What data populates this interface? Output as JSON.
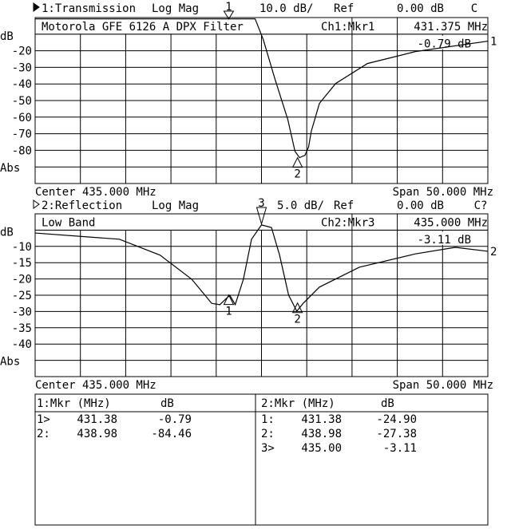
{
  "chart_data": [
    {
      "type": "line",
      "channel_label": "1:Transmission",
      "format": "Log Mag",
      "scale": "10.0 dB/",
      "ref_label": "Ref",
      "ref": "0.00 dB",
      "flag": "C",
      "title": "Motorola GFE 6126 A DPX Filter",
      "marker_readout_label": "Ch1:Mkr1",
      "marker_readout_freq": "431.375 MHz",
      "marker_readout_value": "-0.79 dB",
      "ylabel": "dB",
      "ybottom_label": "Abs",
      "yticks": [
        "-20",
        "-30",
        "-40",
        "-50",
        "-60",
        "-70",
        "-80"
      ],
      "dB_per_div": 10,
      "ref_db": 0,
      "center_label": "Center 435.000 MHz",
      "span_label": "Span 50.000 MHz",
      "xlim": [
        410,
        460
      ],
      "trace_label": "1",
      "series": [
        {
          "x": [
            410,
            434.3,
            435.2,
            436.5,
            437.9,
            438.7,
            439.2,
            439.8,
            440.2,
            440.5,
            441.4,
            443.2,
            446.7,
            452,
            460
          ],
          "y": [
            -0.8,
            -0.8,
            -13.3,
            -37.3,
            -61.3,
            -80.6,
            -84.4,
            -83,
            -78,
            -68.5,
            -51.7,
            -39.7,
            -27.7,
            -20.5,
            -14.2
          ]
        }
      ],
      "markers": [
        {
          "id": "1",
          "freq": 431.38,
          "db": -0.79,
          "pos": "top"
        },
        {
          "id": "2",
          "freq": 438.98,
          "db": -84.46,
          "pos": "trace"
        }
      ]
    },
    {
      "type": "line",
      "channel_label": "2:Reflection",
      "format": "Log Mag",
      "scale": "5.0 dB/",
      "ref_label": "Ref",
      "ref": "0.00 dB",
      "flag": "C?",
      "title": "Low Band",
      "marker_readout_label": "Ch2:Mkr3",
      "marker_readout_freq": "435.000 MHz",
      "marker_readout_value": "-3.11 dB",
      "ylabel": "dB",
      "ybottom_label": "Abs",
      "yticks": [
        "-10",
        "-15",
        "-20",
        "-25",
        "-30",
        "-35",
        "-40"
      ],
      "dB_per_div": 5,
      "ref_db": 0,
      "center_label": "Center 435.000 MHz",
      "span_label": "Span 50.000 MHz",
      "xlim": [
        410,
        460
      ],
      "trace_label": "2",
      "series": [
        {
          "x": [
            410,
            419.3,
            423.8,
            427.3,
            429.5,
            430.4,
            431.5,
            432.1,
            433,
            433.9,
            435,
            436.1,
            437,
            438,
            438.9,
            439.6,
            441.4,
            445.8,
            452,
            456.4,
            460
          ],
          "y": [
            -5.9,
            -7.8,
            -12.7,
            -20.1,
            -27.5,
            -27.9,
            -25,
            -27.9,
            -20.1,
            -7.8,
            -3.4,
            -4.2,
            -12.7,
            -25,
            -29.9,
            -27.5,
            -22.5,
            -16.4,
            -12.3,
            -10.3,
            -11.5
          ]
        }
      ],
      "markers": [
        {
          "id": "1",
          "freq": 431.38,
          "db": -24.9,
          "pos": "trace"
        },
        {
          "id": "2",
          "freq": 438.98,
          "db": -27.38,
          "pos": "trace"
        },
        {
          "id": "3",
          "freq": 435.0,
          "db": -3.11,
          "pos": "top"
        }
      ]
    }
  ],
  "marker_tables": [
    {
      "header": "1:Mkr (MHz)",
      "unit": "dB",
      "rows": [
        [
          "1>",
          "431.38",
          "-0.79"
        ],
        [
          "2:",
          "438.98",
          "-84.46"
        ]
      ]
    },
    {
      "header": "2:Mkr (MHz)",
      "unit": "dB",
      "rows": [
        [
          "1:",
          "431.38",
          "-24.90"
        ],
        [
          "2:",
          "438.98",
          "-27.38"
        ],
        [
          "3>",
          "435.00",
          "-3.11"
        ]
      ]
    }
  ]
}
